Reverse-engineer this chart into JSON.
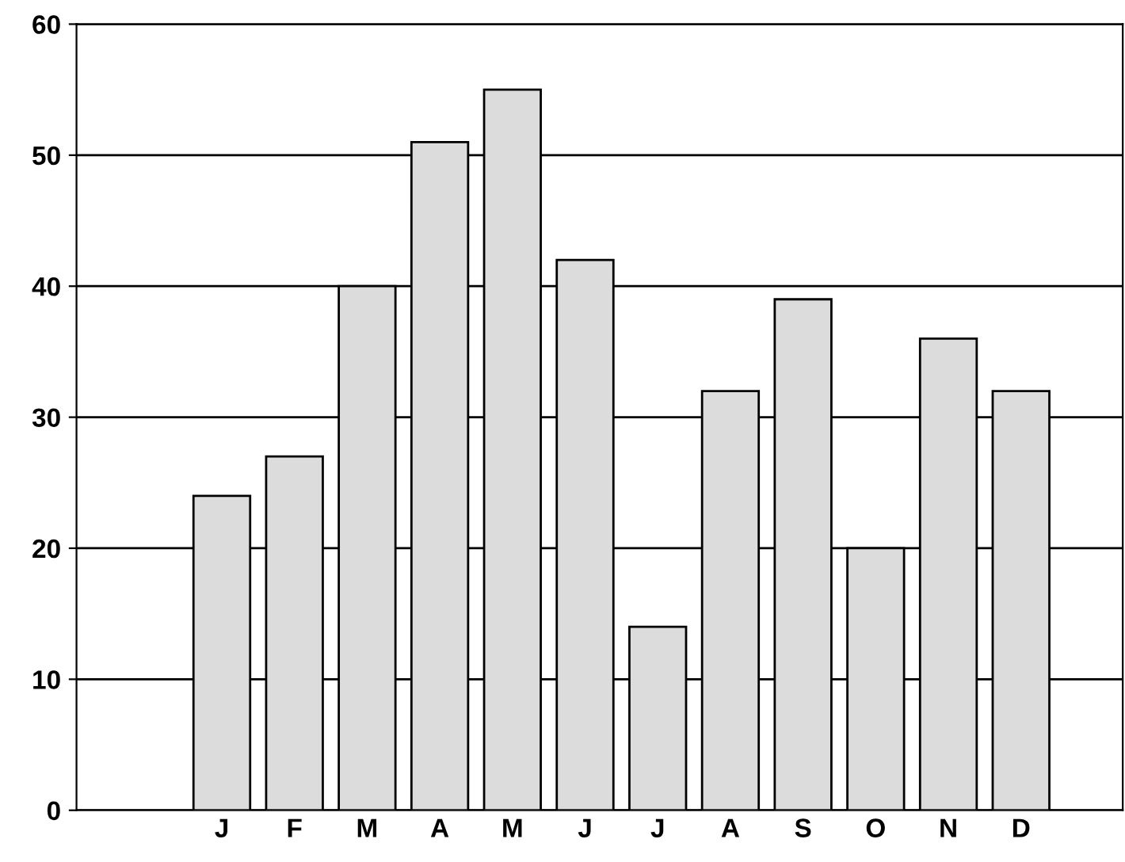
{
  "chart_data": {
    "type": "bar",
    "categories": [
      "J",
      "F",
      "M",
      "A",
      "M",
      "J",
      "J",
      "A",
      "S",
      "O",
      "N",
      "D"
    ],
    "values": [
      24,
      27,
      40,
      51,
      55,
      42,
      14,
      32,
      39,
      20,
      36,
      32
    ],
    "color": "#dcdcdc",
    "ylim": [
      0,
      60
    ],
    "yticks": [
      0,
      10,
      20,
      30,
      40,
      50,
      60
    ],
    "grid": "y",
    "legend": false
  }
}
